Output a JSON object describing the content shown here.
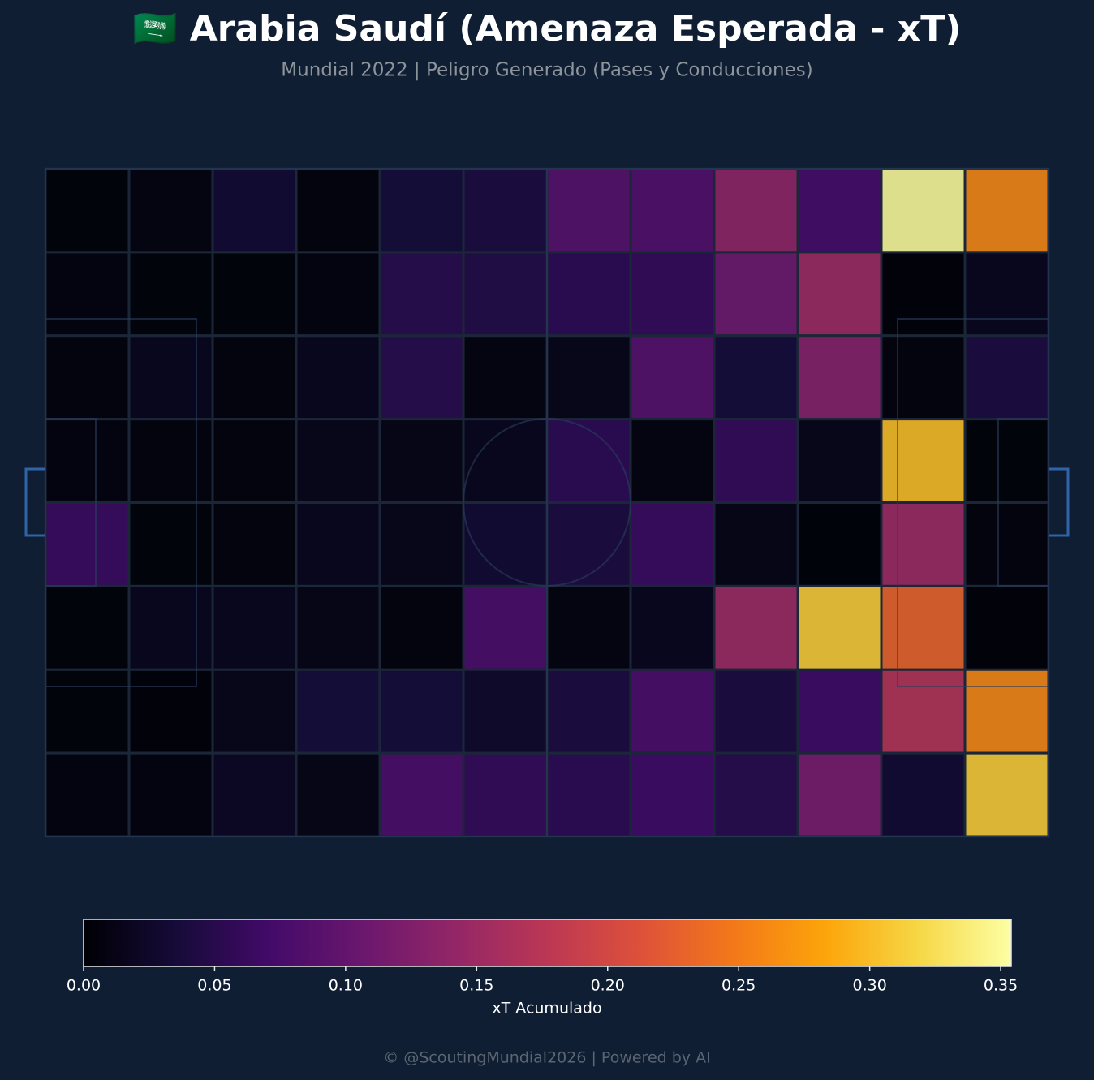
{
  "chart_data": {
    "type": "heatmap",
    "title": "🇸🇦 Arabia Saudí (Amenaza Esperada - xT)",
    "subtitle": "Mundial 2022 | Peligro Generado (Pases y Conducciones)",
    "colorbar_label": "xT Acumulado",
    "footer": "© @ScoutingMundial2026 | Powered by AI",
    "colormap": "inferno",
    "values": [
      [
        0.002,
        0.005,
        0.03,
        0.003,
        0.035,
        0.04,
        0.09,
        0.085,
        0.14,
        0.075,
        0.35,
        0.26
      ],
      [
        0.004,
        0.002,
        0.002,
        0.004,
        0.05,
        0.045,
        0.055,
        0.06,
        0.11,
        0.15,
        0.001,
        0.015
      ],
      [
        0.003,
        0.015,
        0.003,
        0.015,
        0.05,
        0.005,
        0.012,
        0.09,
        0.035,
        0.13,
        0.003,
        0.04
      ],
      [
        0.004,
        0.003,
        0.003,
        0.012,
        0.01,
        0.015,
        0.055,
        0.005,
        0.06,
        0.012,
        0.3,
        0.002
      ],
      [
        0.065,
        0.002,
        0.003,
        0.015,
        0.012,
        0.03,
        0.04,
        0.065,
        0.01,
        0.0,
        0.15,
        0.003
      ],
      [
        0.002,
        0.015,
        0.015,
        0.01,
        0.003,
        0.08,
        0.006,
        0.015,
        0.15,
        0.31,
        0.23,
        0.001
      ],
      [
        0.002,
        0.001,
        0.012,
        0.035,
        0.035,
        0.025,
        0.04,
        0.08,
        0.04,
        0.07,
        0.17,
        0.26
      ],
      [
        0.004,
        0.004,
        0.02,
        0.01,
        0.08,
        0.06,
        0.055,
        0.07,
        0.05,
        0.12,
        0.03,
        0.31
      ]
    ],
    "clim": [
      0,
      0.354
    ],
    "cticks": [
      {
        "value": 0,
        "label": "0.00"
      },
      {
        "value": 0.05,
        "label": "0.05"
      },
      {
        "value": 0.1,
        "label": "0.10"
      },
      {
        "value": 0.15,
        "label": "0.15"
      },
      {
        "value": 0.2,
        "label": "0.20"
      },
      {
        "value": 0.25,
        "label": "0.25"
      },
      {
        "value": 0.3,
        "label": "0.30"
      },
      {
        "value": 0.35,
        "label": "0.35"
      }
    ]
  }
}
